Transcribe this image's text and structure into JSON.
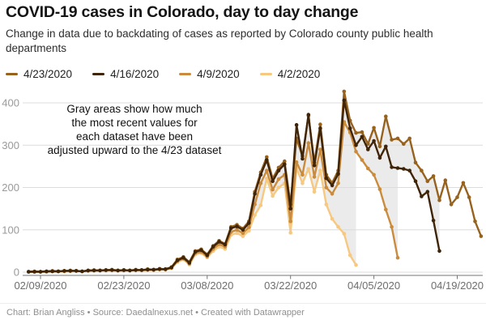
{
  "header": {
    "title": "COVID-19 cases in Colorado, day to day change",
    "subtitle": "Change in data due to backdating of cases as reported by Colorado county public health departments"
  },
  "legend": {
    "items": [
      {
        "label": "4/23/2020",
        "color": "#97621d"
      },
      {
        "label": "4/16/2020",
        "color": "#3f2408"
      },
      {
        "label": "4/9/2020",
        "color": "#ca8c3c"
      },
      {
        "label": "4/2/2020",
        "color": "#f6c880"
      }
    ]
  },
  "annotation": {
    "lines": [
      "Gray areas show how much",
      "the most recent values for",
      "each dataset have been",
      "adjusted upward to the 4/23 dataset"
    ]
  },
  "footer": {
    "text": "Chart: Brian Angliss • Source: Daedalnexus.net • Created with Datawrapper"
  },
  "chart_data": {
    "type": "line",
    "title": "COVID-19 cases in Colorado, day to day change",
    "subtitle": "Change in data due to backdating of cases as reported by Colorado county public health departments",
    "xlabel": "",
    "ylabel": "",
    "grid": true,
    "legend_position": "top",
    "band_color": "#ebebeb",
    "band_meaning": "difference between each older dataset and the 4/23 dataset",
    "ylim": [
      0,
      440
    ],
    "y_ticks": [
      0,
      100,
      200,
      300,
      400
    ],
    "x_ticks": [
      {
        "index": 2,
        "label": "02/09/2020"
      },
      {
        "index": 16,
        "label": "02/23/2020"
      },
      {
        "index": 30,
        "label": "03/08/2020"
      },
      {
        "index": 44,
        "label": "03/22/2020"
      },
      {
        "index": 58,
        "label": "04/05/2020"
      },
      {
        "index": 72,
        "label": "04/19/2020"
      }
    ],
    "dates": [
      "02/07",
      "02/08",
      "02/09",
      "02/10",
      "02/11",
      "02/12",
      "02/13",
      "02/14",
      "02/15",
      "02/16",
      "02/17",
      "02/18",
      "02/19",
      "02/20",
      "02/21",
      "02/22",
      "02/23",
      "02/24",
      "02/25",
      "02/26",
      "02/27",
      "02/28",
      "02/29",
      "03/01",
      "03/02",
      "03/03",
      "03/04",
      "03/05",
      "03/06",
      "03/07",
      "03/08",
      "03/09",
      "03/10",
      "03/11",
      "03/12",
      "03/13",
      "03/14",
      "03/15",
      "03/16",
      "03/17",
      "03/18",
      "03/19",
      "03/20",
      "03/21",
      "03/22",
      "03/23",
      "03/24",
      "03/25",
      "03/26",
      "03/27",
      "03/28",
      "03/29",
      "03/30",
      "03/31",
      "04/01",
      "04/02",
      "04/03",
      "04/04",
      "04/05",
      "04/06",
      "04/07",
      "04/08",
      "04/09",
      "04/10",
      "04/11",
      "04/12",
      "04/13",
      "04/14",
      "04/15",
      "04/16",
      "04/17",
      "04/18",
      "04/19",
      "04/20",
      "04/21",
      "04/22",
      "04/23"
    ],
    "series": [
      {
        "name": "4/23/2020",
        "color": "#97621d",
        "values": [
          1,
          2,
          1,
          2,
          3,
          2,
          3,
          4,
          3,
          2,
          4,
          5,
          4,
          5,
          6,
          4,
          5,
          4,
          6,
          5,
          7,
          6,
          8,
          7,
          12,
          30,
          36,
          24,
          50,
          54,
          42,
          62,
          74,
          67,
          107,
          112,
          103,
          120,
          190,
          236,
          272,
          221,
          247,
          262,
          160,
          316,
          274,
          370,
          259,
          349,
          230,
          211,
          240,
          427,
          358,
          329,
          331,
          303,
          341,
          297,
          368,
          313,
          316,
          303,
          316,
          259,
          240,
          215,
          227,
          170,
          217,
          160,
          177,
          211,
          177,
          120,
          85
        ]
      },
      {
        "name": "4/16/2020",
        "color": "#3f2408",
        "values": [
          1,
          1,
          1,
          2,
          2,
          2,
          3,
          3,
          3,
          2,
          4,
          4,
          4,
          5,
          5,
          4,
          5,
          4,
          5,
          5,
          6,
          6,
          7,
          7,
          11,
          28,
          34,
          22,
          48,
          52,
          40,
          60,
          72,
          65,
          104,
          108,
          100,
          116,
          185,
          230,
          265,
          215,
          240,
          255,
          150,
          348,
          268,
          372,
          252,
          340,
          222,
          205,
          232,
          406,
          340,
          300,
          320,
          290,
          310,
          270,
          297,
          248,
          246,
          244,
          240,
          215,
          179,
          190,
          122,
          50
        ]
      },
      {
        "name": "4/9/2020",
        "color": "#ca8c3c",
        "values": [
          1,
          1,
          1,
          1,
          2,
          2,
          2,
          3,
          3,
          2,
          3,
          4,
          4,
          4,
          5,
          4,
          4,
          4,
          5,
          5,
          6,
          5,
          7,
          6,
          10,
          26,
          32,
          20,
          45,
          48,
          37,
          55,
          66,
          60,
          95,
          100,
          92,
          106,
          160,
          210,
          240,
          195,
          220,
          230,
          120,
          260,
          230,
          305,
          225,
          290,
          200,
          185,
          210,
          355,
          330,
          285,
          265,
          245,
          230,
          196,
          148,
          107,
          34
        ]
      },
      {
        "name": "4/2/2020",
        "color": "#f6c880",
        "values": [
          1,
          1,
          1,
          1,
          2,
          2,
          2,
          2,
          3,
          2,
          3,
          3,
          4,
          4,
          4,
          3,
          4,
          4,
          5,
          4,
          5,
          5,
          6,
          6,
          9,
          24,
          30,
          18,
          42,
          45,
          35,
          50,
          60,
          55,
          88,
          92,
          85,
          98,
          135,
          158,
          221,
          180,
          200,
          210,
          93,
          246,
          210,
          244,
          190,
          240,
          160,
          126,
          107,
          91,
          40,
          17
        ]
      }
    ]
  }
}
